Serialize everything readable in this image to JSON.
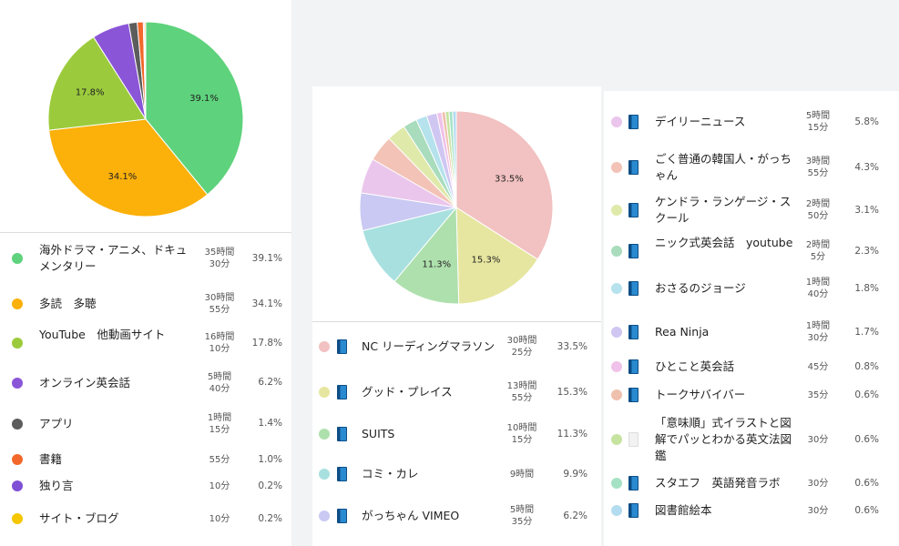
{
  "chart_data": [
    {
      "type": "pie",
      "values": [
        39.1,
        34.1,
        17.8,
        6.2,
        1.4,
        1.0,
        0.2,
        0.2
      ],
      "colors": [
        "#5ed27c",
        "#fbb00a",
        "#9bcb3c",
        "#8b55d8",
        "#5c5c5c",
        "#f2682b",
        "#7f4fd6",
        "#f6c700"
      ],
      "slice_labels": [
        "39.1%",
        "34.1%",
        "17.8%",
        "",
        "",
        "",
        "",
        ""
      ],
      "legend": [
        {
          "label": "海外ドラマ・アニメ、ドキュメンタリー",
          "time": "35時間\n30分",
          "percent": "39.1%",
          "color": "#5ed27c"
        },
        {
          "label": "多読　多聴",
          "time": "30時間\n55分",
          "percent": "34.1%",
          "color": "#fbb00a"
        },
        {
          "label": "YouTube　他動画サイト",
          "time": "16時間\n10分",
          "percent": "17.8%",
          "color": "#9bcb3c"
        },
        {
          "label": "オンライン英会話",
          "time": "5時間\n40分",
          "percent": "6.2%",
          "color": "#8b55d8"
        },
        {
          "label": "アプリ",
          "time": "1時間\n15分",
          "percent": "1.4%",
          "color": "#5c5c5c"
        },
        {
          "label": "書籍",
          "time": "55分",
          "percent": "1.0%",
          "color": "#f2682b"
        },
        {
          "label": "独り言",
          "time": "10分",
          "percent": "0.2%",
          "color": "#7f4fd6"
        },
        {
          "label": "サイト・ブログ",
          "time": "10分",
          "percent": "0.2%",
          "color": "#f6c700"
        }
      ]
    },
    {
      "type": "pie",
      "values": [
        33.5,
        15.3,
        11.3,
        9.9,
        6.2,
        5.8,
        4.3,
        3.1,
        2.3,
        1.8,
        1.7,
        0.8,
        0.6,
        0.6,
        0.6,
        0.6
      ],
      "colors": [
        "#f2c1c1",
        "#e6e6a0",
        "#aee0ad",
        "#a8e0e0",
        "#c9c9f3",
        "#ebc6ec",
        "#f2c3b6",
        "#dfe9a9",
        "#a8dcbc",
        "#b5e2ec",
        "#cfc6f2",
        "#f0c2ea",
        "#efc0ad",
        "#c6e39f",
        "#a5e2c5",
        "#b3dcf0"
      ],
      "slice_labels": [
        "33.5%",
        "15.3%",
        "11.3%",
        "",
        "",
        "",
        "",
        "",
        "",
        "",
        "",
        "",
        "",
        "",
        "",
        ""
      ],
      "legend": [
        {
          "label": "NC リーディングマラソン",
          "time": "30時間\n25分",
          "percent": "33.5%",
          "color": "#f2c1c1",
          "icon": "book-icon"
        },
        {
          "label": "グッド・プレイス",
          "time": "13時間\n55分",
          "percent": "15.3%",
          "color": "#e6e6a0",
          "icon": "book-icon"
        },
        {
          "label": "SUITS",
          "time": "10時間\n15分",
          "percent": "11.3%",
          "color": "#aee0ad",
          "icon": "book-icon"
        },
        {
          "label": "コミ・カレ",
          "time": "9時間",
          "percent": "9.9%",
          "color": "#a8e0e0",
          "icon": "book-icon"
        },
        {
          "label": "がっちゃん VIMEO",
          "time": "5時間\n35分",
          "percent": "6.2%",
          "color": "#c9c9f3",
          "icon": "book-icon"
        },
        {
          "label": "デイリーニュース",
          "time": "5時間\n15分",
          "percent": "5.8%",
          "color": "#ebc6ec",
          "icon": "book-icon"
        },
        {
          "label": "ごく普通の韓国人・がっちゃん",
          "time": "3時間\n55分",
          "percent": "4.3%",
          "color": "#f2c3b6",
          "icon": "book-icon"
        },
        {
          "label": "ケンドラ・ランゲージ・スクール",
          "time": "2時間\n50分",
          "percent": "3.1%",
          "color": "#dfe9a9",
          "icon": "book-icon"
        },
        {
          "label": "ニック式英会話　youtube",
          "time": "2時間\n5分",
          "percent": "2.3%",
          "color": "#a8dcbc",
          "icon": "book-icon"
        },
        {
          "label": "おさるのジョージ",
          "time": "1時間\n40分",
          "percent": "1.8%",
          "color": "#b5e2ec",
          "icon": "book-icon"
        },
        {
          "label": "Rea Ninja",
          "time": "1時間\n30分",
          "percent": "1.7%",
          "color": "#cfc6f2",
          "icon": "book-icon"
        },
        {
          "label": "ひとこと英会話",
          "time": "45分",
          "percent": "0.8%",
          "color": "#f0c2ea",
          "icon": "book-icon"
        },
        {
          "label": "トークサバイバー",
          "time": "35分",
          "percent": "0.6%",
          "color": "#efc0ad",
          "icon": "book-icon"
        },
        {
          "label": "「意味順」式イラストと図解でパッとわかる英文法図鑑",
          "time": "30分",
          "percent": "0.6%",
          "color": "#c6e39f",
          "icon": "blank-book-icon"
        },
        {
          "label": "スタエフ　英語発音ラボ",
          "time": "30分",
          "percent": "0.6%",
          "color": "#a5e2c5",
          "icon": "book-icon"
        },
        {
          "label": "図書館絵本",
          "time": "30分",
          "percent": "0.6%",
          "color": "#b3dcf0",
          "icon": "book-icon"
        }
      ]
    }
  ]
}
